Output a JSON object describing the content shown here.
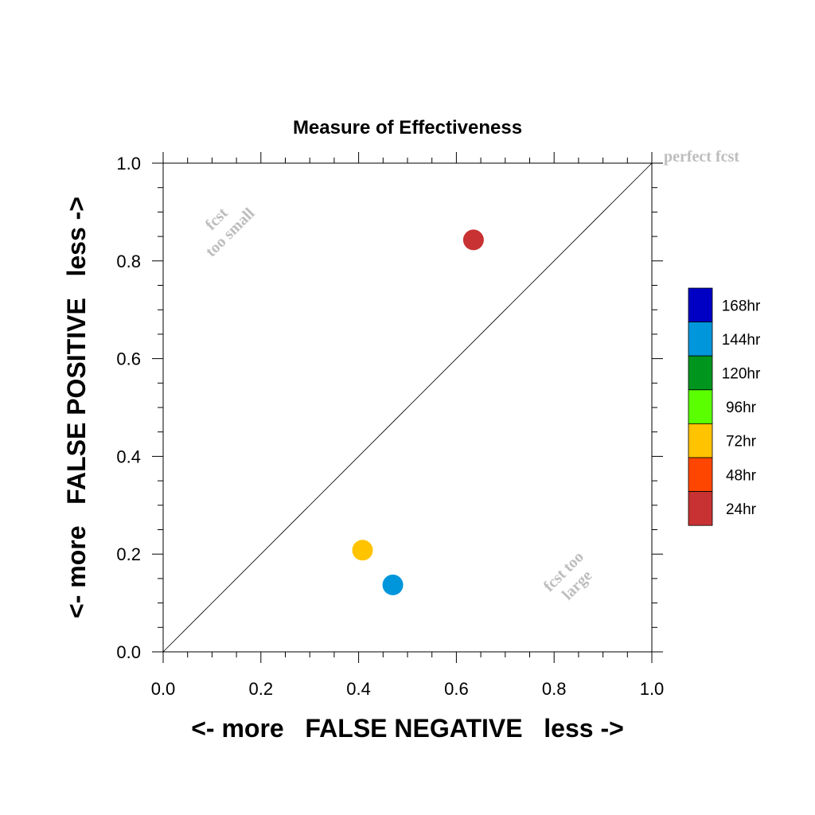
{
  "chart_data": {
    "type": "scatter",
    "title": "Measure of Effectiveness",
    "xlabel": "<- more   FALSE NEGATIVE   less ->",
    "ylabel": "<- more   FALSE POSITIVE   less ->",
    "xlim": [
      0.0,
      1.0
    ],
    "ylim": [
      0.0,
      1.0
    ],
    "x_ticks": [
      "0.0",
      "0.2",
      "0.4",
      "0.6",
      "0.8",
      "1.0"
    ],
    "y_ticks": [
      "0.0",
      "0.2",
      "0.4",
      "0.6",
      "0.8",
      "1.0"
    ],
    "grid": false,
    "reference_line": "diagonal",
    "points": [
      {
        "x": 0.635,
        "y": 0.843,
        "series": "24hr"
      },
      {
        "x": 0.408,
        "y": 0.208,
        "series": "72hr"
      },
      {
        "x": 0.47,
        "y": 0.137,
        "series": "144hr"
      }
    ],
    "legend": {
      "placement": "right",
      "entries": [
        {
          "label": "168hr",
          "color": "#0000c4"
        },
        {
          "label": "144hr",
          "color": "#0096dc"
        },
        {
          "label": "120hr",
          "color": "#00961e"
        },
        {
          "label": "96hr",
          "color": "#5aff00"
        },
        {
          "label": "72hr",
          "color": "#ffc300"
        },
        {
          "label": "48hr",
          "color": "#ff4600"
        },
        {
          "label": "24hr",
          "color": "#c83232"
        }
      ]
    },
    "annotations": {
      "perfect": "perfect fcst",
      "small_line1": "fcst",
      "small_line2": "too small",
      "large_line1": "fcst too",
      "large_line2": "large"
    }
  }
}
